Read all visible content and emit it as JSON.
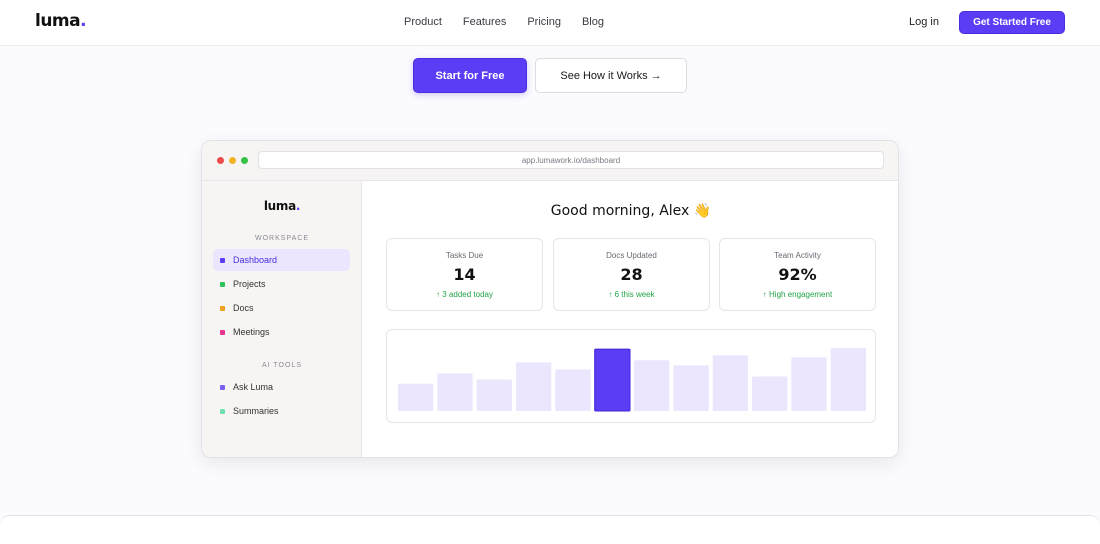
{
  "nav": {
    "logo": "luma",
    "logo_dot": ".",
    "links": [
      "Product",
      "Features",
      "Pricing",
      "Blog"
    ],
    "login": "Log in",
    "cta": "Get Started Free"
  },
  "hero": {
    "primary_button": "Start for Free",
    "secondary_button": "See How it Works →"
  },
  "browser": {
    "url": "app.lumawork.io/dashboard"
  },
  "app": {
    "logo": "luma",
    "logo_dot": ".",
    "sections": [
      {
        "heading": "WORKSPACE",
        "items": [
          {
            "label": "Dashboard",
            "color": "#5b3df5",
            "active": true
          },
          {
            "label": "Projects",
            "color": "#2fc25b",
            "active": false
          },
          {
            "label": "Docs",
            "color": "#f0a020",
            "active": false
          },
          {
            "label": "Meetings",
            "color": "#e5358e",
            "active": false
          }
        ]
      },
      {
        "heading": "AI TOOLS",
        "items": [
          {
            "label": "Ask Luma",
            "color": "#7a60f5",
            "active": false
          },
          {
            "label": "Summaries",
            "color": "#6fe0b0",
            "active": false
          }
        ]
      }
    ],
    "greeting": "Good morning, Alex 👋",
    "stats": [
      {
        "label": "Tasks Due",
        "value": "14",
        "delta": "↑ 3 added today"
      },
      {
        "label": "Docs Updated",
        "value": "28",
        "delta": "↑ 6 this week"
      },
      {
        "label": "Team Activity",
        "value": "92%",
        "delta": "↑ High engagement"
      }
    ]
  },
  "chart_data": {
    "type": "bar",
    "values": [
      27,
      37,
      31,
      48,
      41,
      61,
      50,
      45,
      55,
      34,
      53,
      62
    ],
    "highlight_index": 5,
    "ylim": [
      0,
      70
    ],
    "bar_color": "#ebe6fd",
    "highlight_color": "#5b3df5"
  }
}
